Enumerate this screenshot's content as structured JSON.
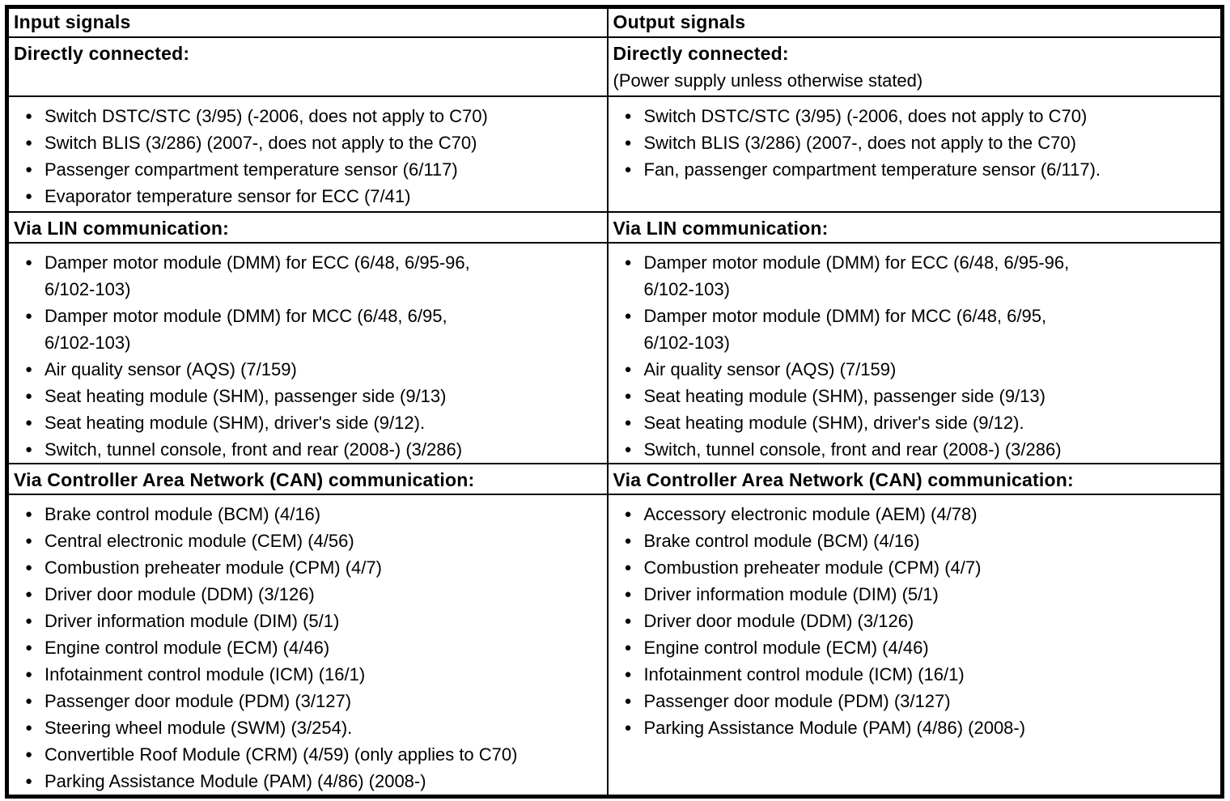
{
  "page": {
    "background_color": "#ffffff",
    "line_color": "#000000",
    "text_color": "#000000"
  },
  "table": {
    "rows": [
      {
        "type": "header",
        "cells": [
          {
            "text": "Input signals"
          },
          {
            "text": "Output signals"
          }
        ]
      },
      {
        "type": "subheader",
        "cells": [
          {
            "title": "Directly connected:",
            "note": ""
          },
          {
            "title": "Directly connected:",
            "note": "(Power supply unless otherwise stated)"
          }
        ]
      },
      {
        "type": "list",
        "cells": [
          {
            "items": [
              "Switch DSTC/STC (3/95) (-2006, does not apply to C70)",
              "Switch BLIS (3/286) (2007-, does not apply to the C70)",
              "Passenger compartment temperature sensor (6/117)",
              "Evaporator temperature sensor for ECC (7/41)"
            ]
          },
          {
            "items": [
              "Switch DSTC/STC (3/95) (-2006, does not apply to C70)",
              "Switch BLIS (3/286) (2007-, does not apply to the C70)",
              "Fan, passenger compartment temperature sensor (6/117)."
            ]
          }
        ]
      },
      {
        "type": "subheader",
        "cells": [
          {
            "title": "Via LIN communication:",
            "note": ""
          },
          {
            "title": "Via LIN communication:",
            "note": ""
          }
        ]
      },
      {
        "type": "list",
        "cells": [
          {
            "items": [
              "Damper motor module (DMM) for ECC (6/48, 6/95-96,\n6/102-103)",
              "Damper motor module (DMM) for MCC (6/48, 6/95,\n6/102-103)",
              "Air quality sensor (AQS) (7/159)",
              "Seat heating module (SHM), passenger side (9/13)",
              "Seat heating module (SHM), driver's side (9/12).",
              "Switch, tunnel console, front and rear (2008-) (3/286)"
            ]
          },
          {
            "items": [
              "Damper motor module (DMM) for ECC (6/48, 6/95-96,\n6/102-103)",
              "Damper motor module (DMM) for MCC (6/48, 6/95,\n6/102-103)",
              "Air quality sensor (AQS) (7/159)",
              "Seat heating module (SHM), passenger side (9/13)",
              "Seat heating module (SHM), driver's side (9/12).",
              "Switch, tunnel console, front and rear (2008-) (3/286)"
            ]
          }
        ]
      },
      {
        "type": "subheader",
        "cells": [
          {
            "title": "Via Controller Area Network (CAN) communication:",
            "note": ""
          },
          {
            "title": "Via Controller Area Network (CAN) communication:",
            "note": ""
          }
        ]
      },
      {
        "type": "list",
        "cells": [
          {
            "items": [
              "Brake control module (BCM) (4/16)",
              "Central electronic module (CEM) (4/56)",
              "Combustion preheater module (CPM) (4/7)",
              "Driver door module (DDM) (3/126)",
              "Driver information module (DIM) (5/1)",
              "Engine control module (ECM) (4/46)",
              "Infotainment control module (ICM) (16/1)",
              "Passenger door module (PDM) (3/127)",
              "Steering wheel module (SWM) (3/254).",
              "Convertible Roof Module (CRM) (4/59) (only applies to C70)",
              "Parking Assistance Module (PAM) (4/86) (2008-)"
            ]
          },
          {
            "items": [
              "Accessory electronic module (AEM) (4/78)",
              "Brake control module (BCM) (4/16)",
              "Combustion preheater module (CPM) (4/7)",
              "Driver information module (DIM) (5/1)",
              "Driver door module (DDM) (3/126)",
              "Engine control module (ECM) (4/46)",
              "Infotainment control module (ICM) (16/1)",
              "Passenger door module (PDM) (3/127)",
              "Parking Assistance Module (PAM) (4/86) (2008-)"
            ]
          }
        ]
      }
    ]
  },
  "icons": {
    "bullet": "●"
  }
}
